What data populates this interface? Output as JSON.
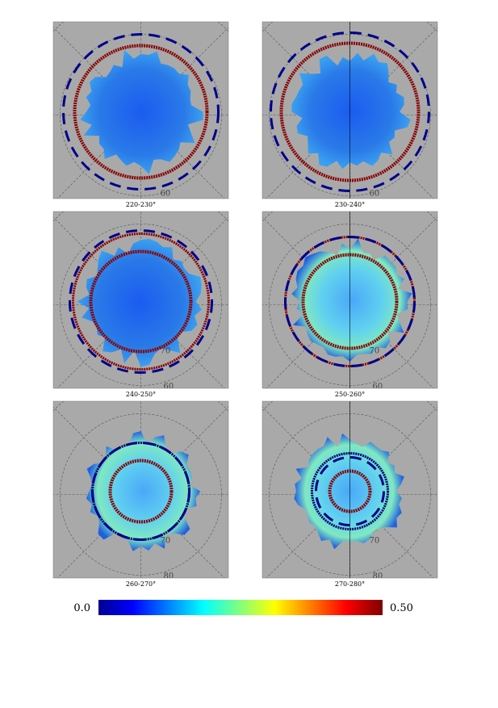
{
  "panels": [
    {
      "label": "220-230°",
      "lat_labels": [
        "60"
      ]
    },
    {
      "label": "230-240°",
      "lat_labels": [
        "60"
      ]
    },
    {
      "label": "240-250°",
      "lat_labels": [
        "70",
        "60"
      ]
    },
    {
      "label": "250-260°",
      "lat_labels": [
        "70",
        "60"
      ]
    },
    {
      "label": "260-270°",
      "lat_labels": [
        "70",
        "80"
      ]
    },
    {
      "label": "270-280°",
      "lat_labels": [
        "70",
        "80"
      ]
    }
  ],
  "colorbar": {
    "min_label": "0.0",
    "max_label": "0.50"
  }
}
